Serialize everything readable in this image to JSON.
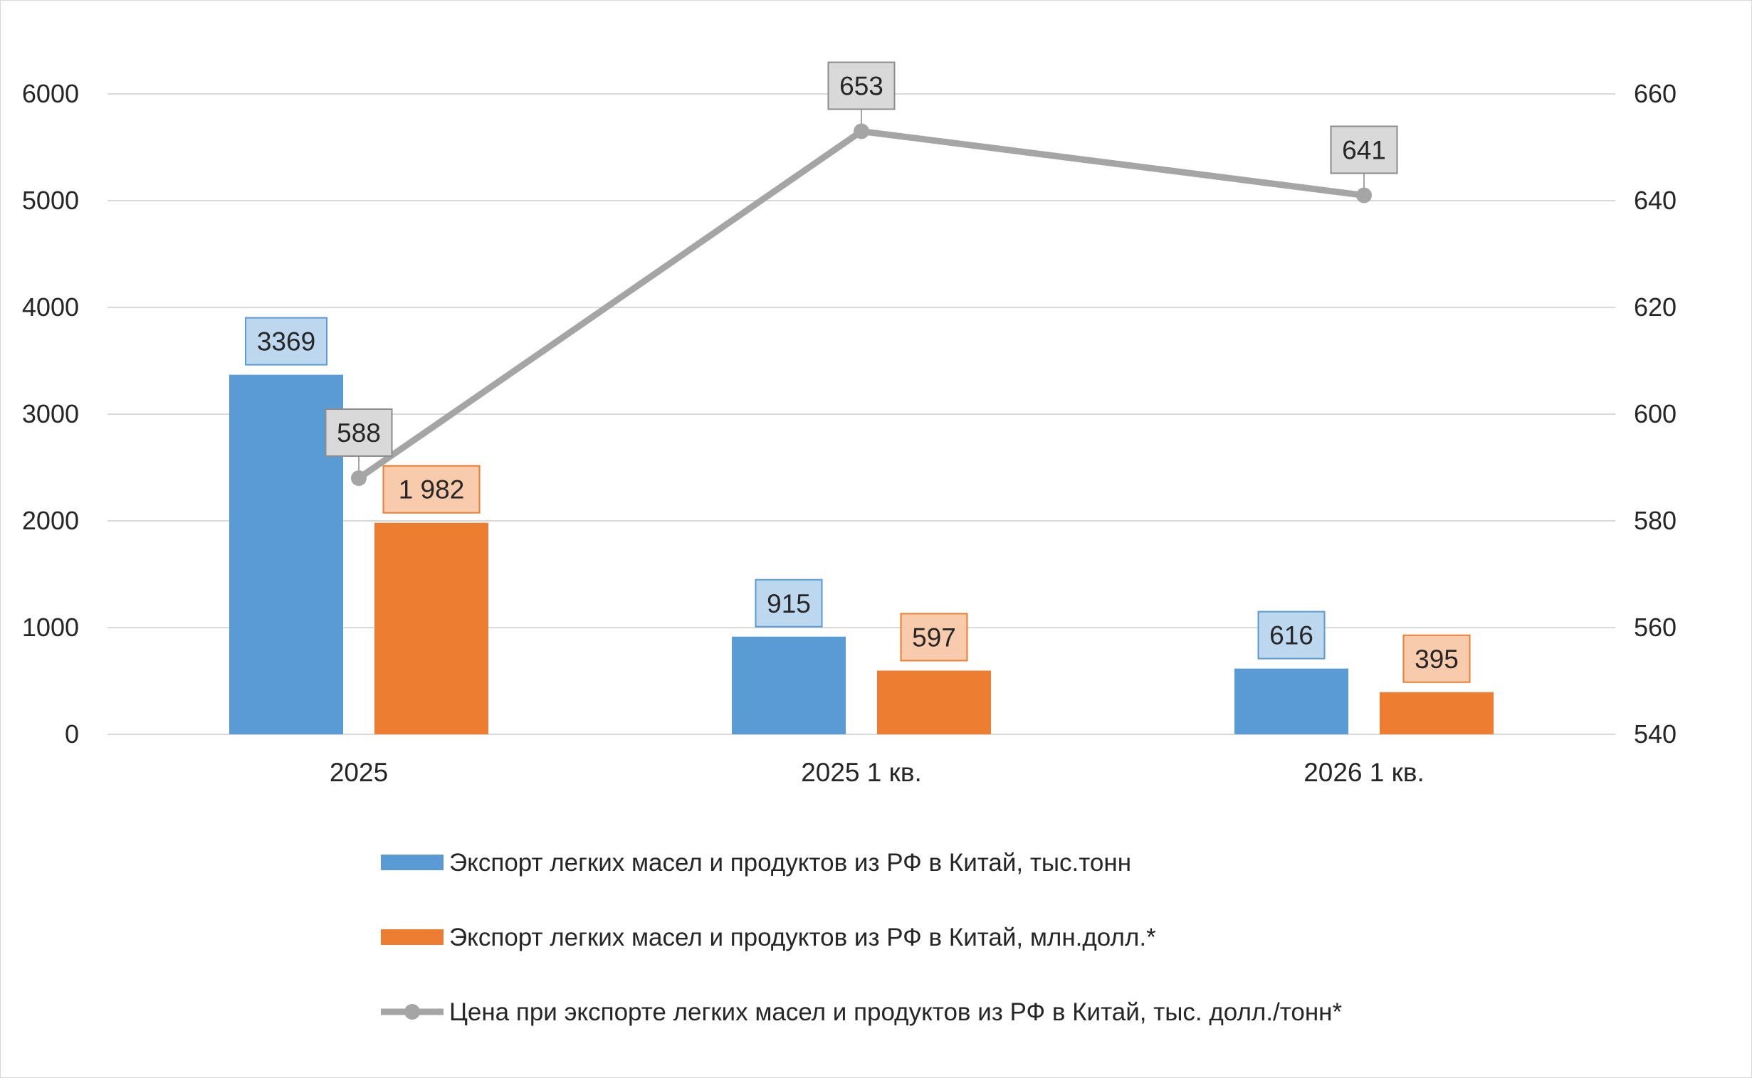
{
  "chart_data": {
    "type": "bar",
    "categories": [
      "2025",
      "2025 1 кв.",
      "2026 1 кв."
    ],
    "series": [
      {
        "name": "Экспорт легких масел и продуктов из РФ в Китай, тыс.тонн",
        "kind": "bar",
        "axis": "left",
        "color": "#5b9bd5",
        "label_fill": "#bdd7ee",
        "values": [
          3369,
          915,
          616
        ],
        "labels": [
          "3369",
          "915",
          "616"
        ]
      },
      {
        "name": "Экспорт легких масел и продуктов из РФ в Китай, млн.долл.*",
        "kind": "bar",
        "axis": "left",
        "color": "#ed7d31",
        "label_fill": "#f8cbad",
        "values": [
          1982,
          597,
          395
        ],
        "labels": [
          "1 982",
          "597",
          "395"
        ]
      },
      {
        "name": "Цена при экспорте легких масел и продуктов из РФ в Китай, тыс. долл./тонн*",
        "kind": "line",
        "axis": "right",
        "color": "#a5a5a5",
        "label_fill": "#d9d9d9",
        "values": [
          588,
          653,
          641
        ],
        "labels": [
          "588",
          "653",
          "641"
        ]
      }
    ],
    "y_left": {
      "lim": [
        0,
        6000
      ],
      "ticks": [
        "0",
        "1000",
        "2000",
        "3000",
        "4000",
        "5000",
        "6000"
      ]
    },
    "y_right": {
      "lim": [
        540,
        660
      ],
      "ticks": [
        "540",
        "560",
        "580",
        "600",
        "620",
        "640",
        "660"
      ]
    },
    "grid": true,
    "legend_position": "bottom"
  }
}
